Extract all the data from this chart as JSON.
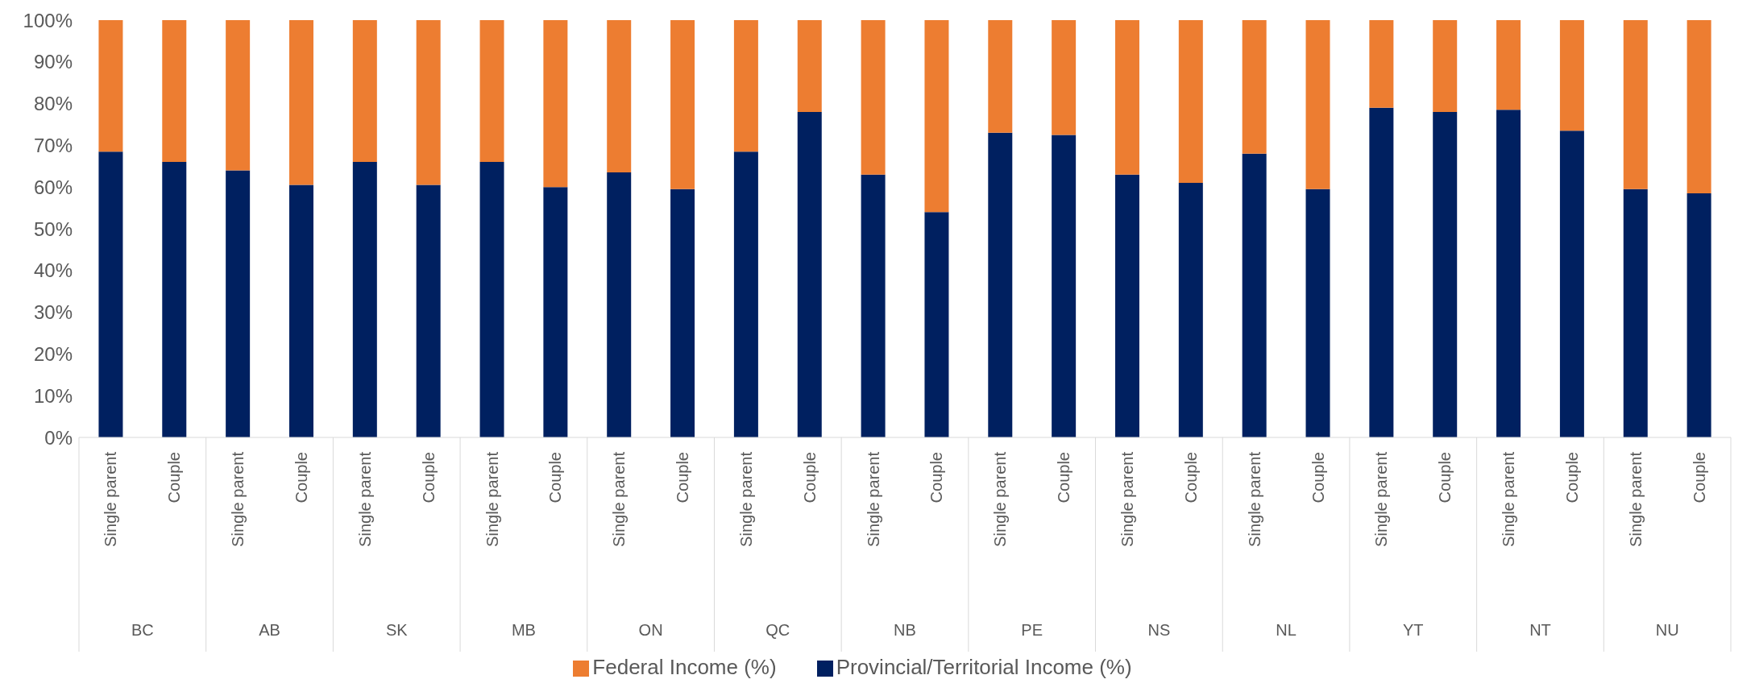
{
  "chart_data": {
    "type": "bar",
    "stacked": true,
    "categories": [
      "Single parent",
      "Couple",
      "Single parent",
      "Couple",
      "Single parent",
      "Couple",
      "Single parent",
      "Couple",
      "Single parent",
      "Couple",
      "Single parent",
      "Couple",
      "Single parent",
      "Couple",
      "Single parent",
      "Couple",
      "Single parent",
      "Couple",
      "Single parent",
      "Couple",
      "Single parent",
      "Couple",
      "Single parent",
      "Couple",
      "Single parent",
      "Couple"
    ],
    "series": [
      {
        "name": "Provincial/Territorial Income (%)",
        "color": "#002060",
        "values": [
          68.5,
          66,
          64,
          60.5,
          66,
          60.5,
          66,
          60,
          63.5,
          59.5,
          68.5,
          78,
          63,
          54,
          73,
          72.5,
          63,
          61,
          68,
          59.5,
          79,
          78,
          78.5,
          73.5,
          59.5,
          58.5
        ]
      },
      {
        "name": "Federal Income (%)",
        "color": "#ed7d31",
        "values": [
          31.5,
          34,
          36,
          39.5,
          34,
          39.5,
          34,
          40,
          36.5,
          40.5,
          31.5,
          22,
          37,
          46,
          27,
          27.5,
          37,
          39,
          32,
          40.5,
          21,
          22,
          21.5,
          26.5,
          40.5,
          41.5
        ]
      }
    ],
    "annotations": [
      "BC",
      "AB",
      "SK",
      "MB",
      "ON",
      "QC",
      "NB",
      "PE",
      "NS",
      "NL",
      "YT",
      "NT",
      "NU"
    ],
    "ylim": [
      0,
      100
    ],
    "yticks": [
      {
        "value": 0,
        "label": "0%"
      },
      {
        "value": 10,
        "label": "10%"
      },
      {
        "value": 20,
        "label": "20%"
      },
      {
        "value": 30,
        "label": "30%"
      },
      {
        "value": 40,
        "label": "40%"
      },
      {
        "value": 50,
        "label": "50%"
      },
      {
        "value": 60,
        "label": "60%"
      },
      {
        "value": 70,
        "label": "70%"
      },
      {
        "value": 80,
        "label": "80%"
      },
      {
        "value": 90,
        "label": "90%"
      },
      {
        "value": 100,
        "label": "100%"
      }
    ],
    "grid": false,
    "legend": "bottom"
  }
}
